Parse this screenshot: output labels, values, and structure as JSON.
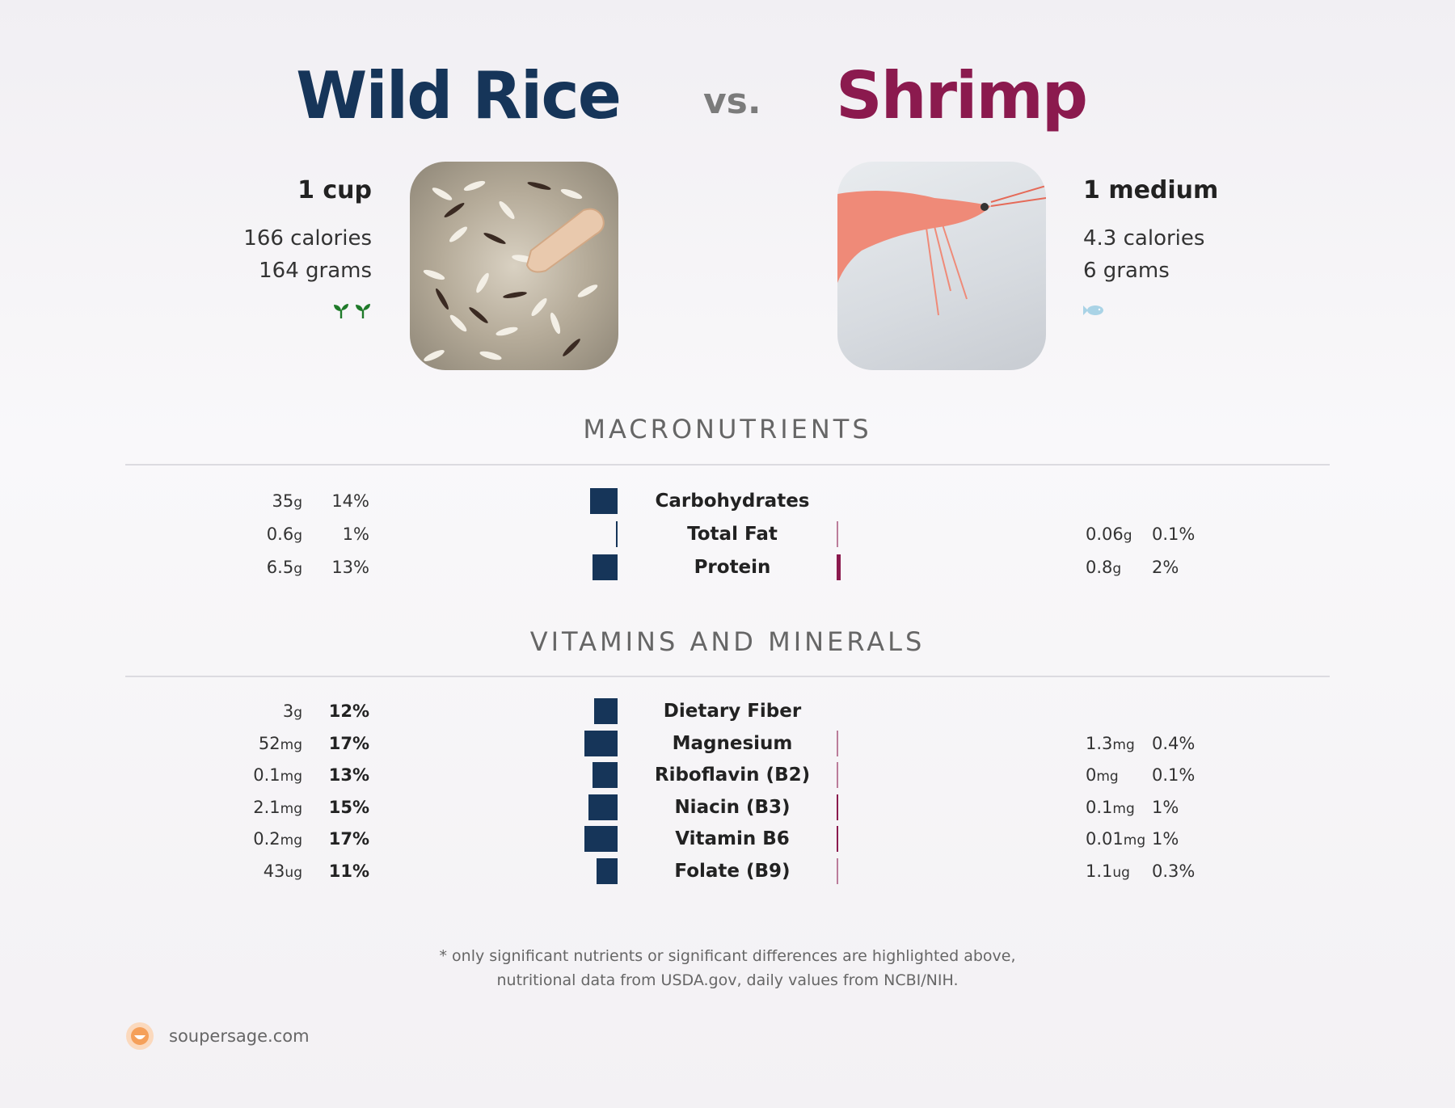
{
  "colors": {
    "left_accent": "#163559",
    "right_accent": "#8b1a4e",
    "vegan_icon": "#1f7a2a",
    "fish_icon": "#a9d3e6",
    "brand_icon": "#f5a05a"
  },
  "left": {
    "name": "Wild Rice",
    "serving": "1 cup",
    "calories": "166 calories",
    "grams": "164 grams",
    "diet_icons": [
      "sprout-icon",
      "sprout-icon"
    ]
  },
  "vs_label": "vs.",
  "right": {
    "name": "Shrimp",
    "serving": "1 medium",
    "calories": "4.3 calories",
    "grams": "6 grams",
    "diet_icons": [
      "fish-icon"
    ]
  },
  "sections": {
    "macro_title": "MACRONUTRIENTS",
    "vitamins_title": "VITAMINS AND MINERALS"
  },
  "macros": [
    {
      "label": "Carbohydrates",
      "left_value": "35",
      "left_unit": "g",
      "left_pct": "14%",
      "left_pct_num": 14,
      "right_value": "",
      "right_unit": "",
      "right_pct": "",
      "right_pct_num": 0
    },
    {
      "label": "Total Fat",
      "left_value": "0.6",
      "left_unit": "g",
      "left_pct": "1%",
      "left_pct_num": 1,
      "right_value": "0.06",
      "right_unit": "g",
      "right_pct": "0.1%",
      "right_pct_num": 0.1
    },
    {
      "label": "Protein",
      "left_value": "6.5",
      "left_unit": "g",
      "left_pct": "13%",
      "left_pct_num": 13,
      "right_value": "0.8",
      "right_unit": "g",
      "right_pct": "2%",
      "right_pct_num": 2
    }
  ],
  "vitamins": [
    {
      "label": "Dietary Fiber",
      "left_value": "3",
      "left_unit": "g",
      "left_pct": "12%",
      "left_pct_num": 12,
      "right_value": "",
      "right_unit": "",
      "right_pct": "",
      "right_pct_num": 0
    },
    {
      "label": "Magnesium",
      "left_value": "52",
      "left_unit": "mg",
      "left_pct": "17%",
      "left_pct_num": 17,
      "right_value": "1.3",
      "right_unit": "mg",
      "right_pct": "0.4%",
      "right_pct_num": 0.4
    },
    {
      "label": "Riboflavin (B2)",
      "left_value": "0.1",
      "left_unit": "mg",
      "left_pct": "13%",
      "left_pct_num": 13,
      "right_value": "0",
      "right_unit": "mg",
      "right_pct": "0.1%",
      "right_pct_num": 0.1
    },
    {
      "label": "Niacin (B3)",
      "left_value": "2.1",
      "left_unit": "mg",
      "left_pct": "15%",
      "left_pct_num": 15,
      "right_value": "0.1",
      "right_unit": "mg",
      "right_pct": "1%",
      "right_pct_num": 1
    },
    {
      "label": "Vitamin B6",
      "left_value": "0.2",
      "left_unit": "mg",
      "left_pct": "17%",
      "left_pct_num": 17,
      "right_value": "0.01",
      "right_unit": "mg",
      "right_pct": "1%",
      "right_pct_num": 1
    },
    {
      "label": "Folate (B9)",
      "left_value": "43",
      "left_unit": "ug",
      "left_pct": "11%",
      "left_pct_num": 11,
      "right_value": "1.1",
      "right_unit": "ug",
      "right_pct": "0.3%",
      "right_pct_num": 0.3
    }
  ],
  "footnote": {
    "line1": "* only significant nutrients or significant differences are highlighted above,",
    "line2": "nutritional data from USDA.gov, daily values from NCBI/NIH."
  },
  "brand": {
    "name": "soupersage.com",
    "icon": "soupersage-logo-icon"
  }
}
